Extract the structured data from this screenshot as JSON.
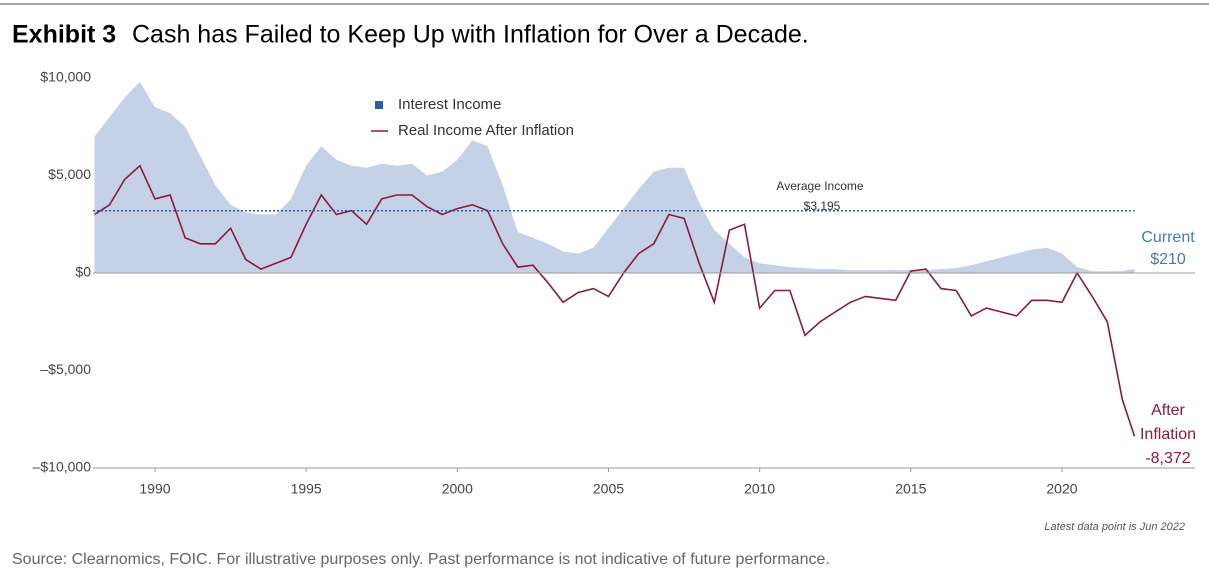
{
  "chart_data": {
    "type": "area_line",
    "title_prefix": "Exhibit 3",
    "title": "Cash has Failed to Keep Up with Inflation for Over a Decade.",
    "x": [
      1988.0,
      1988.5,
      1989.0,
      1989.5,
      1990.0,
      1990.5,
      1991.0,
      1991.5,
      1992.0,
      1992.5,
      1993.0,
      1993.5,
      1994.0,
      1994.5,
      1995.0,
      1995.5,
      1996.0,
      1996.5,
      1997.0,
      1997.5,
      1998.0,
      1998.5,
      1999.0,
      1999.5,
      2000.0,
      2000.5,
      2001.0,
      2001.5,
      2002.0,
      2002.5,
      2003.0,
      2003.5,
      2004.0,
      2004.5,
      2005.0,
      2005.5,
      2006.0,
      2006.5,
      2007.0,
      2007.5,
      2008.0,
      2008.5,
      2009.0,
      2009.5,
      2010.0,
      2010.5,
      2011.0,
      2011.5,
      2012.0,
      2012.5,
      2013.0,
      2013.5,
      2014.0,
      2014.5,
      2015.0,
      2015.5,
      2016.0,
      2016.5,
      2017.0,
      2017.5,
      2018.0,
      2018.5,
      2019.0,
      2019.5,
      2020.0,
      2020.5,
      2021.0,
      2021.5,
      2022.0,
      2022.4
    ],
    "series": [
      {
        "name": "Interest Income",
        "color": "#2f5aa8",
        "kind": "area",
        "values": [
          7000,
          8000,
          9000,
          9800,
          8500,
          8200,
          7500,
          6000,
          4500,
          3500,
          3100,
          3000,
          3000,
          3800,
          5500,
          6500,
          5800,
          5500,
          5400,
          5600,
          5500,
          5600,
          5000,
          5200,
          5800,
          6800,
          6500,
          4500,
          2100,
          1800,
          1500,
          1100,
          1000,
          1300,
          2300,
          3300,
          4300,
          5200,
          5400,
          5400,
          3600,
          2200,
          1500,
          800,
          500,
          400,
          300,
          250,
          200,
          200,
          150,
          150,
          150,
          150,
          150,
          150,
          200,
          250,
          400,
          600,
          800,
          1000,
          1200,
          1300,
          1000,
          300,
          100,
          80,
          100,
          210
        ]
      },
      {
        "name": "Real Income After Inflation",
        "color": "#8b1a3f",
        "kind": "line",
        "values": [
          3000,
          3500,
          4800,
          5500,
          3800,
          4000,
          1800,
          1500,
          1500,
          2300,
          700,
          200,
          500,
          800,
          2500,
          4000,
          3000,
          3200,
          2500,
          3800,
          4000,
          4000,
          3400,
          3000,
          3300,
          3500,
          3200,
          1500,
          300,
          400,
          -500,
          -1500,
          -1000,
          -800,
          -1200,
          0,
          1000,
          1500,
          3000,
          2800,
          500,
          -1500,
          2200,
          2500,
          -1800,
          -900,
          -900,
          -3200,
          -2500,
          -2000,
          -1500,
          -1200,
          -1300,
          -1400,
          100,
          200,
          -800,
          -900,
          -2200,
          -1800,
          -2000,
          -2200,
          -1400,
          -1400,
          -1500,
          0,
          -1200,
          -2500,
          -6500,
          -8372
        ]
      }
    ],
    "xlim": [
      1987.95,
      2024.4
    ],
    "xticks": [
      1990,
      1995,
      2000,
      2005,
      2010,
      2015,
      2020
    ],
    "ylim": [
      -10000,
      10000
    ],
    "yticks": [
      {
        "value": 10000,
        "label": "$10,000"
      },
      {
        "value": 5000,
        "label": "$5,000"
      },
      {
        "value": 0,
        "label": "$0"
      },
      {
        "value": -5000,
        "label": "–$5,000"
      },
      {
        "value": -10000,
        "label": "–$10,000"
      }
    ],
    "average": {
      "label": "Average Income",
      "value": 3195,
      "value_label": "$3,195",
      "color": "#2f5aa8"
    },
    "current": {
      "label": "Current",
      "value_label": "$210"
    },
    "after": {
      "label": [
        "After",
        "Inflation"
      ],
      "value_label": "-8,372"
    },
    "note": "Latest data point is Jun 2022",
    "source": "Source: Clearnomics, FOIC. For illustrative purposes only. Past performance is not indicative of future performance."
  }
}
